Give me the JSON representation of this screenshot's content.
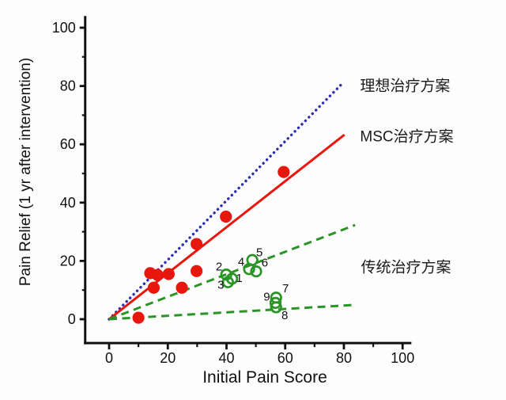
{
  "chart_data": {
    "type": "scatter",
    "title": "",
    "xlabel": "Initial Pain Score",
    "ylabel": "Pain Relief (1 yr after intervention)",
    "xlim": [
      -8.15,
      103
    ],
    "ylim": [
      -8.2,
      104
    ],
    "x_ticks": [
      0,
      20,
      40,
      60,
      80,
      100
    ],
    "y_ticks": [
      0,
      20,
      40,
      60,
      80,
      100
    ],
    "x_minor_ticks": [
      10,
      30,
      50,
      70,
      90
    ],
    "y_minor_ticks": [
      10,
      30,
      50,
      70,
      90
    ],
    "grid": false,
    "axis_color": "#111111",
    "lines": [
      {
        "name": "ideal",
        "label": "理想治疗方案",
        "color": "#2d2db4",
        "style": "dotted",
        "x": [
          0,
          79.6
        ],
        "y": [
          0,
          81.0
        ]
      },
      {
        "name": "msc",
        "label": "MSC治疗方案",
        "color": "#e8170e",
        "style": "solid",
        "x": [
          0,
          80.2
        ],
        "y": [
          0,
          63.3
        ]
      },
      {
        "name": "conventional-upper",
        "label": "传统治疗方案",
        "color": "#2a9427",
        "style": "dashed",
        "x": [
          0,
          83.8
        ],
        "y": [
          0,
          32.3
        ]
      },
      {
        "name": "conventional-lower",
        "label": "传统治疗方案",
        "color": "#2a9427",
        "style": "dashed",
        "x": [
          0,
          83.5
        ],
        "y": [
          0,
          4.9
        ]
      }
    ],
    "series": [
      {
        "name": "MSC治疗方案",
        "marker": "filled-circle",
        "color": "#e8170e",
        "points": [
          [
            10,
            0.5
          ],
          [
            14,
            15.8
          ],
          [
            16.5,
            15.2
          ],
          [
            20.3,
            15.5
          ],
          [
            15.2,
            10.8
          ],
          [
            24.8,
            10.8
          ],
          [
            29.8,
            16.5
          ],
          [
            29.8,
            25.8
          ],
          [
            39.8,
            35.2
          ],
          [
            59.5,
            50.5
          ]
        ]
      },
      {
        "name": "传统治疗方案",
        "marker": "open-circle",
        "color": "#2a9427",
        "points": [
          {
            "label": "2",
            "x": 39.9,
            "y": 15.3,
            "dx": -9,
            "dy": -10
          },
          {
            "label": "1",
            "x": 41.9,
            "y": 13.9,
            "dx": 9,
            "dy": -1
          },
          {
            "label": "3",
            "x": 40.5,
            "y": 12.7,
            "dx": -9,
            "dy": 3
          },
          {
            "label": "5",
            "x": 48.8,
            "y": 20.3,
            "dx": 9,
            "dy": -10
          },
          {
            "label": "4",
            "x": 47.7,
            "y": 17.2,
            "dx": -10,
            "dy": -9
          },
          {
            "label": "6",
            "x": 50.1,
            "y": 16.4,
            "dx": 11,
            "dy": -11
          },
          {
            "label": "7",
            "x": 56.9,
            "y": 7.4,
            "dx": 12,
            "dy": -12
          },
          {
            "label": "9",
            "x": 56.7,
            "y": 5.6,
            "dx": -11,
            "dy": -8
          },
          {
            "label": "8",
            "x": 56.9,
            "y": 4.1,
            "dx": 11,
            "dy": 10
          }
        ]
      }
    ],
    "annotations": [
      {
        "text": "理想治疗方案",
        "x": 85.5,
        "y": 80.5
      },
      {
        "text": "MSC治疗方案",
        "x": 85.5,
        "y": 63.0
      },
      {
        "text": "传统治疗方案",
        "x": 85.8,
        "y": 18.2
      }
    ],
    "legend_position": "right-inline"
  }
}
